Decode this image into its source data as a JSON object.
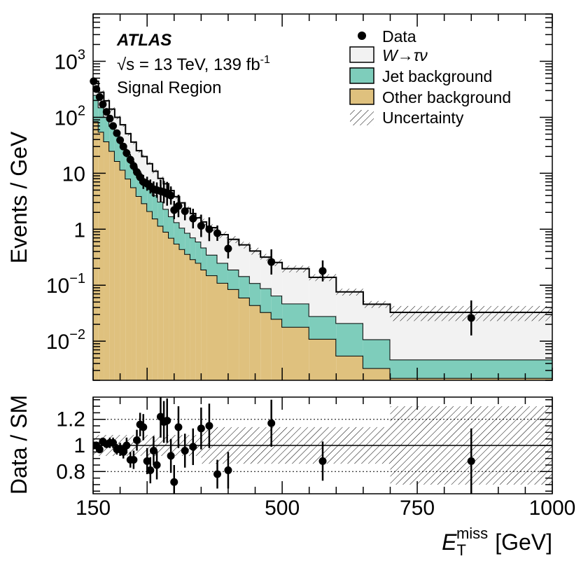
{
  "chart_data": {
    "type": "histogram",
    "experiment": "ATLAS",
    "energy_label": "√s = 13 TeV, 139 fb",
    "lumi_superscript": "-1",
    "region": "Signal Region",
    "ylabel": "Events / GeV",
    "ratio_ylabel": "Data / SM",
    "xlabel": "E",
    "xlabel_sub": "T",
    "xlabel_sup": "miss",
    "xlabel_unit": "[GeV]",
    "xlim": [
      150,
      1000
    ],
    "ylim_log": [
      0.002,
      7000
    ],
    "ratio_ylim": [
      0.63,
      1.37
    ],
    "xticks": [
      150,
      500,
      750,
      1000
    ],
    "xtick_labels": [
      "150",
      "500",
      "750",
      "1000"
    ],
    "yticks": [
      1000,
      100,
      10,
      1,
      0.1,
      0.01
    ],
    "ytick_labels": [
      {
        "base": "10",
        "exp": "3"
      },
      {
        "base": "10",
        "exp": "2"
      },
      {
        "base": "10",
        "exp": ""
      },
      {
        "base": "1",
        "exp": ""
      },
      {
        "base": "10",
        "exp": "−1"
      },
      {
        "base": "10",
        "exp": "−2"
      }
    ],
    "ratio_yticks": [
      0.8,
      1.0,
      1.2
    ],
    "ratio_ytick_labels": [
      "0.8",
      "1",
      "1.2"
    ],
    "legend": [
      {
        "key": "data",
        "label": "Data"
      },
      {
        "key": "w",
        "label": "W→τν"
      },
      {
        "key": "jet",
        "label": "Jet background"
      },
      {
        "key": "other",
        "label": "Other background"
      },
      {
        "key": "unc",
        "label": "Uncertainty"
      }
    ],
    "colors": {
      "other": "#dfc17e",
      "jet": "#7ecdbb",
      "w": "#f2f2f2",
      "line": "#000000"
    },
    "bins": [
      150,
      160,
      170,
      180,
      190,
      200,
      210,
      220,
      230,
      240,
      250,
      260,
      270,
      280,
      290,
      300,
      310,
      320,
      330,
      340,
      350,
      360,
      380,
      400,
      420,
      440,
      460,
      480,
      500,
      550,
      600,
      650,
      700,
      1000
    ],
    "series": [
      {
        "name": "Other background",
        "values": [
          85,
          55,
          37,
          25,
          16.5,
          11.5,
          8,
          5.6,
          3.9,
          2.9,
          2.1,
          1.55,
          1.15,
          0.9,
          0.7,
          0.55,
          0.44,
          0.36,
          0.29,
          0.25,
          0.19,
          0.15,
          0.11,
          0.085,
          0.06,
          0.044,
          0.033,
          0.025,
          0.018,
          0.011,
          0.0055,
          0.0033,
          0.0022,
          0.0011
        ]
      },
      {
        "name": "Jet background",
        "values": [
          165,
          95,
          65,
          45,
          31.5,
          22,
          14,
          9.4,
          6.4,
          5.0,
          3.7,
          2.5,
          1.95,
          1.4,
          1.0,
          0.78,
          0.62,
          0.5,
          0.42,
          0.35,
          0.28,
          0.2,
          0.14,
          0.105,
          0.085,
          0.065,
          0.055,
          0.04,
          0.029,
          0.017,
          0.0155,
          0.0075,
          0.0025,
          0.0012
        ]
      },
      {
        "name": "W→τν",
        "values": [
          190,
          130,
          95,
          70,
          52,
          40,
          29,
          21,
          15,
          12,
          9,
          6.8,
          5,
          4.2,
          3.2,
          2.5,
          1.9,
          1.5,
          1.2,
          1.0,
          0.88,
          0.72,
          0.55,
          0.47,
          0.38,
          0.3,
          0.23,
          0.19,
          0.15,
          0.11,
          0.055,
          0.035,
          0.028,
          0.021
        ]
      }
    ],
    "data_points": [
      {
        "x": 151,
        "y": 440,
        "ratio": 1.0,
        "rerr": 0.03
      },
      {
        "x": 156,
        "y": 320,
        "ratio": 1.0,
        "rerr": 0.03
      },
      {
        "x": 162,
        "y": 230,
        "ratio": 0.97,
        "rerr": 0.03
      },
      {
        "x": 168,
        "y": 170,
        "ratio": 1.03,
        "rerr": 0.03
      },
      {
        "x": 175,
        "y": 125,
        "ratio": 1.01,
        "rerr": 0.03
      },
      {
        "x": 181,
        "y": 95,
        "ratio": 1.02,
        "rerr": 0.04
      },
      {
        "x": 187,
        "y": 70,
        "ratio": 1.02,
        "rerr": 0.04
      },
      {
        "x": 194,
        "y": 52,
        "ratio": 0.97,
        "rerr": 0.04
      },
      {
        "x": 200,
        "y": 39,
        "ratio": 0.97,
        "rerr": 0.05
      },
      {
        "x": 206,
        "y": 30,
        "ratio": 0.95,
        "rerr": 0.05
      },
      {
        "x": 212,
        "y": 23,
        "ratio": 1.0,
        "rerr": 0.06
      },
      {
        "x": 219,
        "y": 17.5,
        "ratio": 0.89,
        "rerr": 0.06
      },
      {
        "x": 225,
        "y": 13.5,
        "ratio": 0.89,
        "rerr": 0.07
      },
      {
        "x": 231,
        "y": 10.5,
        "ratio": 1.04,
        "rerr": 0.08
      },
      {
        "x": 237,
        "y": 8.5,
        "ratio": 1.16,
        "rerr": 0.09
      },
      {
        "x": 243,
        "y": 7.0,
        "ratio": 1.14,
        "rerr": 0.1
      },
      {
        "x": 250,
        "y": 6.5,
        "ratio": 0.88,
        "rerr": 0.1
      },
      {
        "x": 256,
        "y": 5.8,
        "ratio": 0.81,
        "rerr": 0.1
      },
      {
        "x": 262,
        "y": 5.2,
        "ratio": 0.96,
        "rerr": 0.11
      },
      {
        "x": 268,
        "y": 5.0,
        "ratio": 0.85,
        "rerr": 0.11
      },
      {
        "x": 275,
        "y": 4.8,
        "ratio": 1.22,
        "rerr": 0.16
      },
      {
        "x": 281,
        "y": 4.6,
        "ratio": 1.18,
        "rerr": 0.16
      },
      {
        "x": 287,
        "y": 4.3,
        "ratio": 1.19,
        "rerr": 0.17
      },
      {
        "x": 294,
        "y": 4.0,
        "ratio": 0.92,
        "rerr": 0.13
      },
      {
        "x": 300,
        "y": 2.2,
        "ratio": 0.72,
        "rerr": 0.13
      },
      {
        "x": 308,
        "y": 2.6,
        "ratio": 1.14,
        "rerr": 0.16
      },
      {
        "x": 320,
        "y": 2.1,
        "ratio": 0.96,
        "rerr": 0.13
      },
      {
        "x": 335,
        "y": 1.55,
        "ratio": 0.99,
        "rerr": 0.14
      },
      {
        "x": 350,
        "y": 1.15,
        "ratio": 1.13,
        "rerr": 0.16
      },
      {
        "x": 365,
        "y": 1.0,
        "ratio": 1.15,
        "rerr": 0.17
      },
      {
        "x": 380,
        "y": 0.85,
        "ratio": 0.78,
        "rerr": 0.11
      },
      {
        "x": 400,
        "y": 0.45,
        "ratio": 0.81,
        "rerr": 0.14
      },
      {
        "x": 480,
        "y": 0.26,
        "ratio": 1.17,
        "rerr": 0.18
      },
      {
        "x": 575,
        "y": 0.18,
        "ratio": 0.88,
        "rerr": 0.15
      },
      {
        "x": 850,
        "y": 0.026,
        "ratio": 0.88,
        "rerr": 0.25
      }
    ]
  }
}
